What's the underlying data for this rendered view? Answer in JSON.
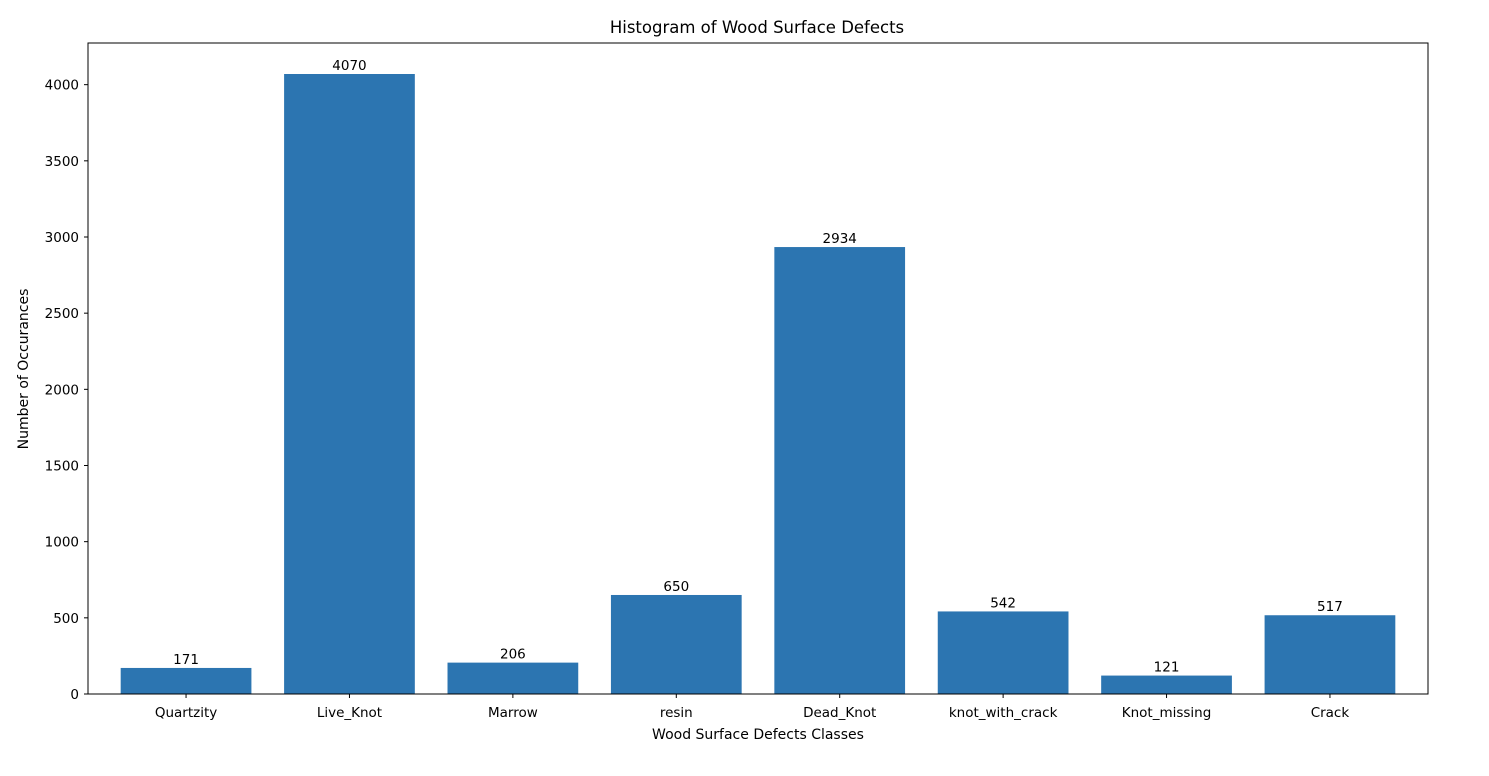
{
  "chart_data": {
    "type": "bar",
    "title": "Histogram of Wood Surface Defects",
    "xlabel": "Wood Surface Defects Classes",
    "ylabel": "Number of Occurances",
    "categories": [
      "Quartzity",
      "Live_Knot",
      "Marrow",
      "resin",
      "Dead_Knot",
      "knot_with_crack",
      "Knot_missing",
      "Crack"
    ],
    "values": [
      171,
      4070,
      206,
      650,
      2934,
      542,
      121,
      517
    ],
    "data_labels": [
      "171",
      "4070",
      "206",
      "650",
      "2934",
      "542",
      "121",
      "517"
    ],
    "ylim": [
      0,
      4273.5
    ],
    "yticks": [
      0,
      500,
      1000,
      1500,
      2000,
      2500,
      3000,
      3500,
      4000
    ],
    "ytick_labels": [
      "0",
      "500",
      "1000",
      "1500",
      "2000",
      "2500",
      "3000",
      "3500",
      "4000"
    ],
    "grid": false,
    "legend": "none",
    "bar_color": "#2c75b1"
  }
}
